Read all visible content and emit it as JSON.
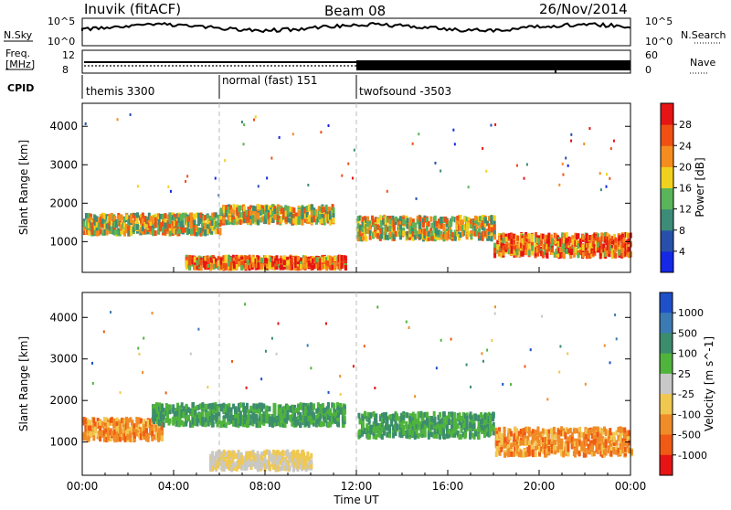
{
  "header": {
    "station": "Inuvik (fitACF)",
    "beam": "Beam 08",
    "date": "26/Nov/2014"
  },
  "strips": {
    "nsky_label": "N.Sky",
    "nsky_ticks": [
      "10^5",
      "10^0"
    ],
    "nsearch_label": "N.Search",
    "freq_label": "Freq.",
    "freq_unit": "[MHz]",
    "freq_ticks": [
      "12",
      "8"
    ],
    "nave_label": "Nave",
    "nave_ticks": [
      "60",
      "0"
    ],
    "cpid_label": "CPID"
  },
  "modes": [
    {
      "name": "themis 3300",
      "start_hour": 0
    },
    {
      "name": "normal (fast) 151",
      "start_hour": 6
    },
    {
      "name": "twofsound -3503",
      "start_hour": 12
    }
  ],
  "x_axis": {
    "label": "Time UT",
    "ticks": [
      "00:00",
      "04:00",
      "08:00",
      "12:00",
      "16:00",
      "20:00",
      "00:00"
    ]
  },
  "chart_data": [
    {
      "type": "heatmap",
      "title": "",
      "xlabel": "Time UT",
      "ylabel": "Slant Range [km]",
      "xlim": [
        0,
        24
      ],
      "ylim": [
        200,
        4600
      ],
      "y_ticks": [
        "1000",
        "2000",
        "3000",
        "4000"
      ],
      "colorbar": {
        "label": "Power [dB]",
        "ticks": [
          "4",
          "8",
          "12",
          "16",
          "20",
          "24",
          "28"
        ],
        "colors": [
          "#1428e6",
          "#2850aa",
          "#3c8c78",
          "#5ab45a",
          "#f0d21e",
          "#f58c1e",
          "#f05014",
          "#e61414"
        ]
      },
      "scatter_bands": [
        {
          "t_start": 0.0,
          "t_end": 6.0,
          "r_center": 1450,
          "r_width": 350
        },
        {
          "t_start": 4.5,
          "t_end": 11.5,
          "r_center": 450,
          "r_width": 200
        },
        {
          "t_start": 6.0,
          "t_end": 11.0,
          "r_center": 1700,
          "r_width": 300
        },
        {
          "t_start": 12.0,
          "t_end": 18.0,
          "r_center": 1350,
          "r_width": 400
        },
        {
          "t_start": 18.0,
          "t_end": 24.0,
          "r_center": 900,
          "r_width": 400
        }
      ]
    },
    {
      "type": "heatmap",
      "title": "",
      "xlabel": "Time UT",
      "ylabel": "Slant Range [km]",
      "xlim": [
        0,
        24
      ],
      "ylim": [
        200,
        4600
      ],
      "y_ticks": [
        "1000",
        "2000",
        "3000",
        "4000"
      ],
      "colorbar": {
        "label": "Velocity [m s^-1]",
        "ticks": [
          "1000",
          "500",
          "100",
          "25",
          "-25",
          "-100",
          "-500",
          "-1000"
        ],
        "colors": [
          "#1e50c8",
          "#3c7ab4",
          "#3c8c6e",
          "#50b43c",
          "#c8c8c8",
          "#f0c850",
          "#f08c28",
          "#f05a14",
          "#e61414"
        ]
      },
      "scatter_bands": [
        {
          "t_start": 0.0,
          "t_end": 3.5,
          "r_center": 1300,
          "r_width": 350
        },
        {
          "t_start": 3.0,
          "t_end": 11.5,
          "r_center": 1650,
          "r_width": 350
        },
        {
          "t_start": 5.5,
          "t_end": 10.0,
          "r_center": 550,
          "r_width": 300
        },
        {
          "t_start": 12.0,
          "t_end": 18.0,
          "r_center": 1400,
          "r_width": 400
        },
        {
          "t_start": 18.0,
          "t_end": 24.0,
          "r_center": 1000,
          "r_width": 450
        }
      ]
    }
  ]
}
